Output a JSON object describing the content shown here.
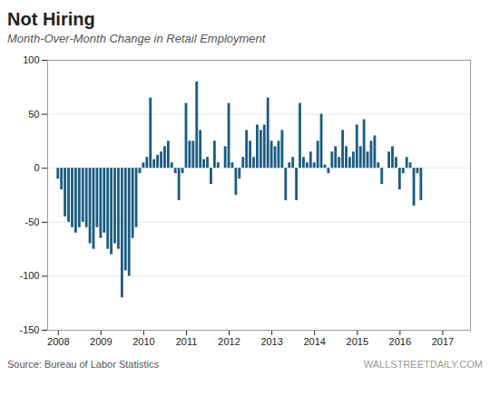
{
  "chart_data": {
    "type": "bar",
    "title": "Not Hiring",
    "subtitle": "Month-Over-Month Change in Retail Employment",
    "annotations": [
      "Source: Bureau of Labor Statistics",
      "WALLSTREETDAILY.COM"
    ],
    "color": "#1b5c82",
    "x": [
      2008,
      2008.0833333333,
      2008.1666666667,
      2008.25,
      2008.3333333333,
      2008.4166666667,
      2008.5,
      2008.5833333333,
      2008.6666666667,
      2008.75,
      2008.8333333333,
      2008.9166666667,
      2009,
      2009.0833333333,
      2009.1666666667,
      2009.25,
      2009.3333333333,
      2009.4166666667,
      2009.5,
      2009.5833333333,
      2009.6666666667,
      2009.75,
      2009.8333333333,
      2009.9166666667,
      2010,
      2010.0833333333,
      2010.1666666667,
      2010.25,
      2010.3333333333,
      2010.4166666667,
      2010.5,
      2010.5833333333,
      2010.6666666667,
      2010.75,
      2010.8333333333,
      2010.9166666667,
      2011,
      2011.0833333333,
      2011.1666666667,
      2011.25,
      2011.3333333333,
      2011.4166666667,
      2011.5,
      2011.5833333333,
      2011.6666666667,
      2011.75,
      2011.8333333333,
      2011.9166666667,
      2012,
      2012.0833333333,
      2012.1666666667,
      2012.25,
      2012.3333333333,
      2012.4166666667,
      2012.5,
      2012.5833333333,
      2012.6666666667,
      2012.75,
      2012.8333333333,
      2012.9166666667,
      2013,
      2013.0833333333,
      2013.1666666667,
      2013.25,
      2013.3333333333,
      2013.4166666667,
      2013.5,
      2013.5833333333,
      2013.6666666667,
      2013.75,
      2013.8333333333,
      2013.9166666667,
      2014,
      2014.0833333333,
      2014.1666666667,
      2014.25,
      2014.3333333333,
      2014.4166666667,
      2014.5,
      2014.5833333333,
      2014.6666666667,
      2014.75,
      2014.8333333333,
      2014.9166666667,
      2015,
      2015.0833333333,
      2015.1666666667,
      2015.25,
      2015.3333333333,
      2015.4166666667,
      2015.5,
      2015.5833333333,
      2015.6666666667,
      2015.75,
      2015.8333333333,
      2015.9166666667,
      2016,
      2016.0833333333,
      2016.1666666667,
      2016.25,
      2016.3333333333,
      2016.4166666667,
      2016.5
    ],
    "values": [
      -10,
      -20,
      -45,
      -50,
      -55,
      -60,
      -55,
      -50,
      -55,
      -70,
      -75,
      -55,
      -65,
      -60,
      -75,
      -80,
      -70,
      -75,
      -120,
      -95,
      -100,
      -65,
      -55,
      -5,
      5,
      10,
      65,
      8,
      12,
      15,
      20,
      25,
      5,
      -5,
      -30,
      -5,
      60,
      25,
      25,
      80,
      35,
      8,
      10,
      -15,
      25,
      5,
      0,
      20,
      60,
      5,
      -25,
      -10,
      10,
      35,
      25,
      10,
      40,
      35,
      40,
      65,
      25,
      20,
      25,
      35,
      -30,
      5,
      10,
      -30,
      60,
      10,
      5,
      15,
      5,
      25,
      50,
      3,
      -5,
      15,
      20,
      10,
      35,
      20,
      10,
      15,
      40,
      20,
      45,
      15,
      25,
      30,
      5,
      -15,
      0,
      15,
      20,
      10,
      -20,
      -5,
      10,
      5,
      -35,
      -5,
      -30
    ],
    "xlim": [
      2007.75,
      2017.65
    ],
    "xticks": [
      2008,
      2009,
      2010,
      2011,
      2012,
      2013,
      2014,
      2015,
      2016,
      2017
    ],
    "ylim": [
      -150,
      100
    ],
    "yticks": [
      -150,
      -100,
      -50,
      0,
      50,
      100
    ],
    "grid": true
  }
}
